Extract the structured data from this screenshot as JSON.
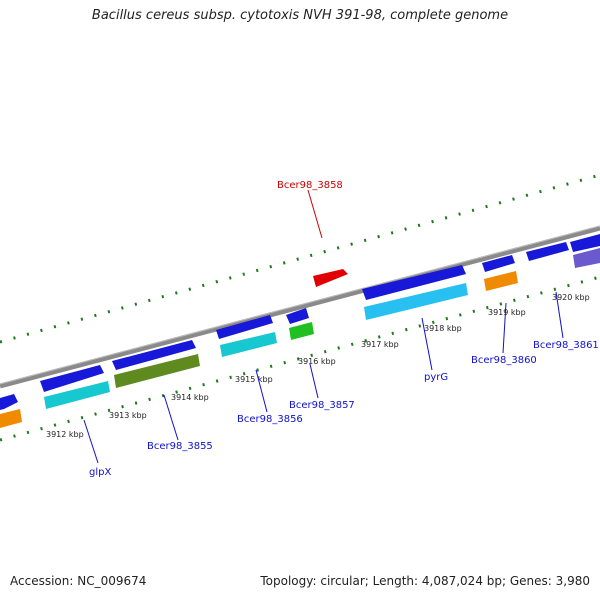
{
  "title": "Bacillus cereus subsp. cytotoxis NVH 391-98, complete genome",
  "footer": {
    "accession": "Accession: NC_009674",
    "summary": "Topology: circular; Length: 4,087,024 bp; Genes: 3,980"
  },
  "colors": {
    "backbone": "#8a8a8a",
    "tick": "#1e7a1e",
    "gene_label": "#1010cc",
    "highlight_label": "#cc0000"
  },
  "ticks": [
    {
      "label": "3912 kbp",
      "t": 0
    },
    {
      "label": "3913 kbp",
      "t": 0
    },
    {
      "label": "3914 kbp",
      "t": 0
    },
    {
      "label": "3915 kbp",
      "t": 0
    },
    {
      "label": "3916 kbp",
      "t": 0
    },
    {
      "label": "3917 kbp",
      "t": 0
    },
    {
      "label": "3918 kbp",
      "t": 0
    },
    {
      "label": "3919 kbp",
      "t": 0
    },
    {
      "label": "3920 kbp",
      "t": 0
    }
  ],
  "gene_labels": {
    "bcer98_3858": "Bcer98_3858",
    "glpx": "glpX",
    "bcer98_3855": "Bcer98_3855",
    "bcer98_3856": "Bcer98_3856",
    "bcer98_3857": "Bcer98_3857",
    "pyrg": "pyrG",
    "bcer98_3860": "Bcer98_3860",
    "bcer98_3861": "Bcer98_3861"
  }
}
